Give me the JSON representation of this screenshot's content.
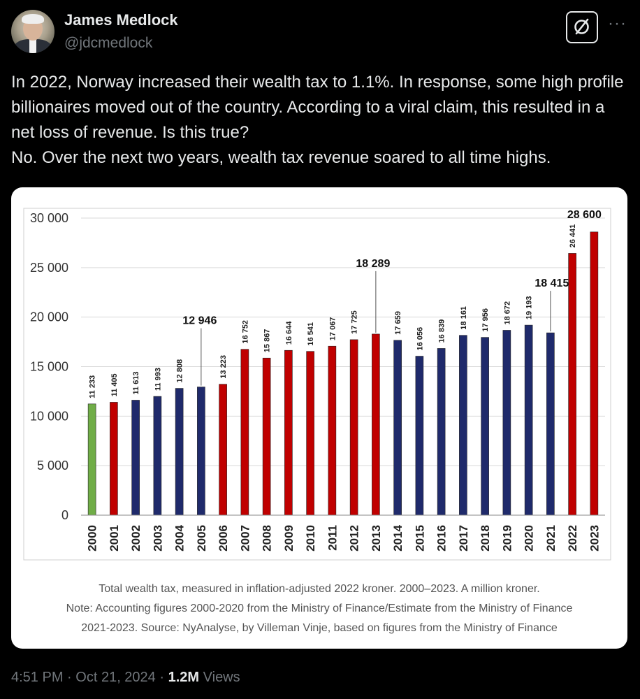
{
  "author": {
    "name": "James Medlock",
    "handle": "@jdcmedlock"
  },
  "tweet": {
    "lines": [
      "In 2022, Norway increased their wealth tax to 1.1%. In response, some high profile billionaires moved out of the country. According to a viral claim, this resulted in a net loss of revenue. Is this true?",
      "No. Over the next two years, wealth tax revenue soared to all time highs."
    ]
  },
  "icons": {
    "grok": "grok-icon",
    "more": "more-icon"
  },
  "more_label": "···",
  "chart_data": {
    "type": "bar",
    "categories": [
      "2000",
      "2001",
      "2002",
      "2003",
      "2004",
      "2005",
      "2006",
      "2007",
      "2008",
      "2009",
      "2010",
      "2011",
      "2012",
      "2013",
      "2014",
      "2015",
      "2016",
      "2017",
      "2018",
      "2019",
      "2020",
      "2021",
      "2022",
      "2023"
    ],
    "values": [
      11233,
      11405,
      11613,
      11993,
      12808,
      12946,
      13223,
      16752,
      15867,
      16644,
      16541,
      17067,
      17725,
      18289,
      17659,
      16056,
      16839,
      18161,
      17956,
      18672,
      19193,
      18415,
      26441,
      28600
    ],
    "labels": [
      "11 233",
      "11 405",
      "11 613",
      "11 993",
      "12 808",
      "12 946",
      "13 223",
      "16 752",
      "15 867",
      "16 644",
      "16 541",
      "17 067",
      "17 725",
      "18 289",
      "17 659",
      "16 056",
      "16 839",
      "18 161",
      "17 956",
      "18 672",
      "19 193",
      "18 415",
      "26 441",
      "28 600"
    ],
    "callouts": [
      5,
      13,
      21,
      23
    ],
    "colors": [
      "green",
      "red",
      "blue",
      "blue",
      "blue",
      "blue",
      "red",
      "red",
      "red",
      "red",
      "red",
      "red",
      "red",
      "red",
      "blue",
      "blue",
      "blue",
      "blue",
      "blue",
      "blue",
      "blue",
      "blue",
      "red",
      "red"
    ],
    "palette": {
      "green": "#70ad47",
      "red": "#c00000",
      "blue": "#1f2a6b"
    },
    "yticks": [
      "0",
      "5 000",
      "10 000",
      "15 000",
      "20 000",
      "25 000",
      "30 000"
    ],
    "ylim": [
      0,
      30000
    ],
    "grid": true,
    "title": "",
    "xlabel": "",
    "ylabel": ""
  },
  "caption": {
    "line1": "Total wealth tax, measured in inflation-adjusted 2022 kroner. 2000–2023. A million kroner.",
    "line2": "Note: Accounting figures 2000-2020 from the Ministry of Finance/Estimate from the Ministry of Finance",
    "line3": "2021-2023. Source: NyAnalyse, by Villeman Vinje, based on figures from the Ministry of Finance"
  },
  "meta": {
    "time": "4:51 PM",
    "sep": "·",
    "date": "Oct 21, 2024",
    "views_count": "1.2M",
    "views_label": "Views"
  }
}
